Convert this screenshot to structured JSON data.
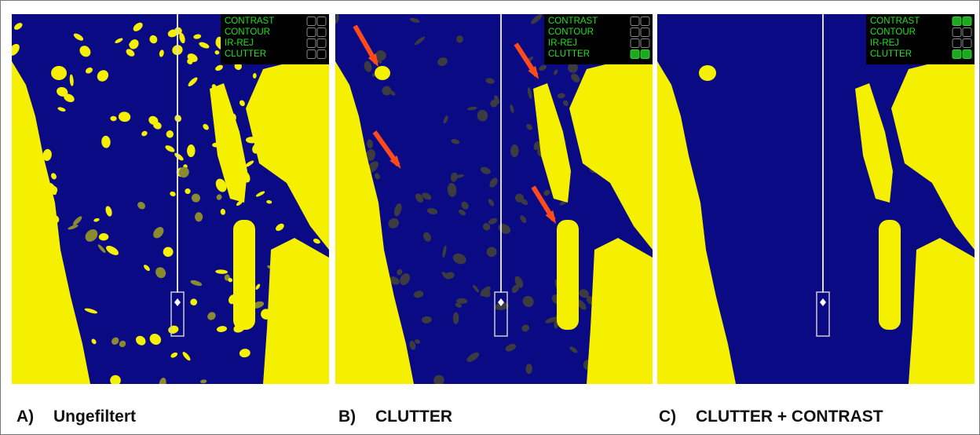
{
  "panels": [
    {
      "label": "A)",
      "caption": "Ungefiltert",
      "filters": [
        {
          "name": "CONTRAST",
          "on": false
        },
        {
          "name": "CONTOUR",
          "on": false
        },
        {
          "name": "IR-REJ",
          "on": false
        },
        {
          "name": "CLUTTER",
          "on": false
        }
      ]
    },
    {
      "label": "B)",
      "caption": "CLUTTER",
      "filters": [
        {
          "name": "CONTRAST",
          "on": false
        },
        {
          "name": "CONTOUR",
          "on": false
        },
        {
          "name": "IR-REJ",
          "on": false
        },
        {
          "name": "CLUTTER",
          "on": true
        }
      ]
    },
    {
      "label": "C)",
      "caption": "CLUTTER + CONTRAST",
      "filters": [
        {
          "name": "CONTRAST",
          "on": true
        },
        {
          "name": "CONTOUR",
          "on": false
        },
        {
          "name": "IR-REJ",
          "on": false
        },
        {
          "name": "CLUTTER",
          "on": true
        }
      ]
    }
  ]
}
